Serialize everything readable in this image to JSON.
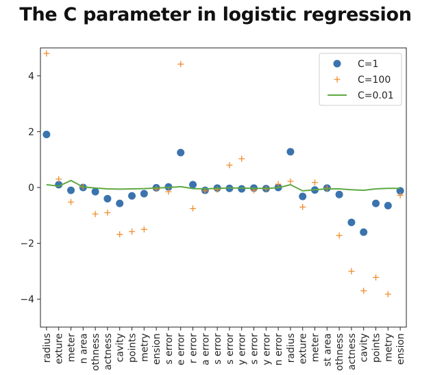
{
  "title": "The C parameter in logistic regression",
  "chart_data": {
    "type": "scatter",
    "title": "The C parameter in logistic regression",
    "xlabel": "",
    "ylabel": "",
    "ylim": [
      -5,
      5
    ],
    "yticks": [
      -4,
      -2,
      0,
      2,
      4
    ],
    "grid": false,
    "legend_position": "top-right",
    "categories": [
      "radius",
      "exture",
      "meter",
      "n area",
      "othness",
      "actness",
      "cavity",
      "points",
      "metry",
      "ension",
      "s error",
      "e error",
      "r error",
      "a error",
      "s error",
      "s error",
      "y error",
      "s error",
      "y error",
      "n error",
      "radius",
      "exture",
      "meter",
      "st area",
      "othness",
      "actness",
      "cavity",
      "points",
      "metry",
      "ension"
    ],
    "series": [
      {
        "name": "C=1",
        "style": "dot",
        "color": "#3a73ae",
        "values": [
          1.9,
          0.1,
          -0.1,
          0.0,
          -0.15,
          -0.4,
          -0.57,
          -0.3,
          -0.22,
          -0.01,
          0.02,
          1.25,
          0.1,
          -0.1,
          -0.02,
          -0.03,
          -0.05,
          -0.02,
          -0.04,
          0.0,
          1.28,
          -0.32,
          -0.09,
          -0.02,
          -0.25,
          -1.25,
          -1.6,
          -0.57,
          -0.65,
          -0.12
        ]
      },
      {
        "name": "C=100",
        "style": "plus",
        "color": "#f08c2a",
        "values": [
          4.8,
          0.3,
          -0.52,
          0.02,
          -0.95,
          -0.9,
          -1.68,
          -1.58,
          -1.5,
          -0.05,
          -0.15,
          4.42,
          -0.75,
          -0.12,
          -0.08,
          0.8,
          1.03,
          -0.1,
          -0.05,
          0.12,
          0.22,
          -0.7,
          0.18,
          -0.03,
          -1.72,
          -3.0,
          -3.7,
          -3.22,
          -3.82,
          -0.28
        ]
      },
      {
        "name": "C=0.01",
        "style": "line",
        "color": "#5ea840",
        "values": [
          0.1,
          0.05,
          0.25,
          0.02,
          -0.02,
          -0.05,
          -0.06,
          -0.05,
          -0.04,
          -0.02,
          0.0,
          0.03,
          -0.04,
          -0.05,
          -0.03,
          -0.02,
          -0.02,
          -0.03,
          -0.03,
          -0.01,
          0.1,
          -0.12,
          -0.08,
          -0.05,
          -0.05,
          -0.08,
          -0.1,
          -0.05,
          -0.03,
          -0.03
        ]
      }
    ]
  }
}
